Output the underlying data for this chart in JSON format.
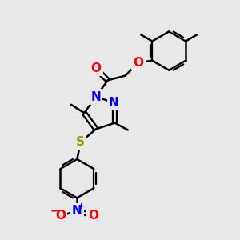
{
  "bg_color": "#e8e8e8",
  "bond_color": "#000000",
  "bond_width": 1.8,
  "atom_colors": {
    "N": "#0000ff",
    "O": "#ff0000",
    "S": "#999900",
    "C": "#000000"
  },
  "font_size_atom": 11,
  "figsize": [
    3.0,
    3.0
  ],
  "dpi": 100
}
